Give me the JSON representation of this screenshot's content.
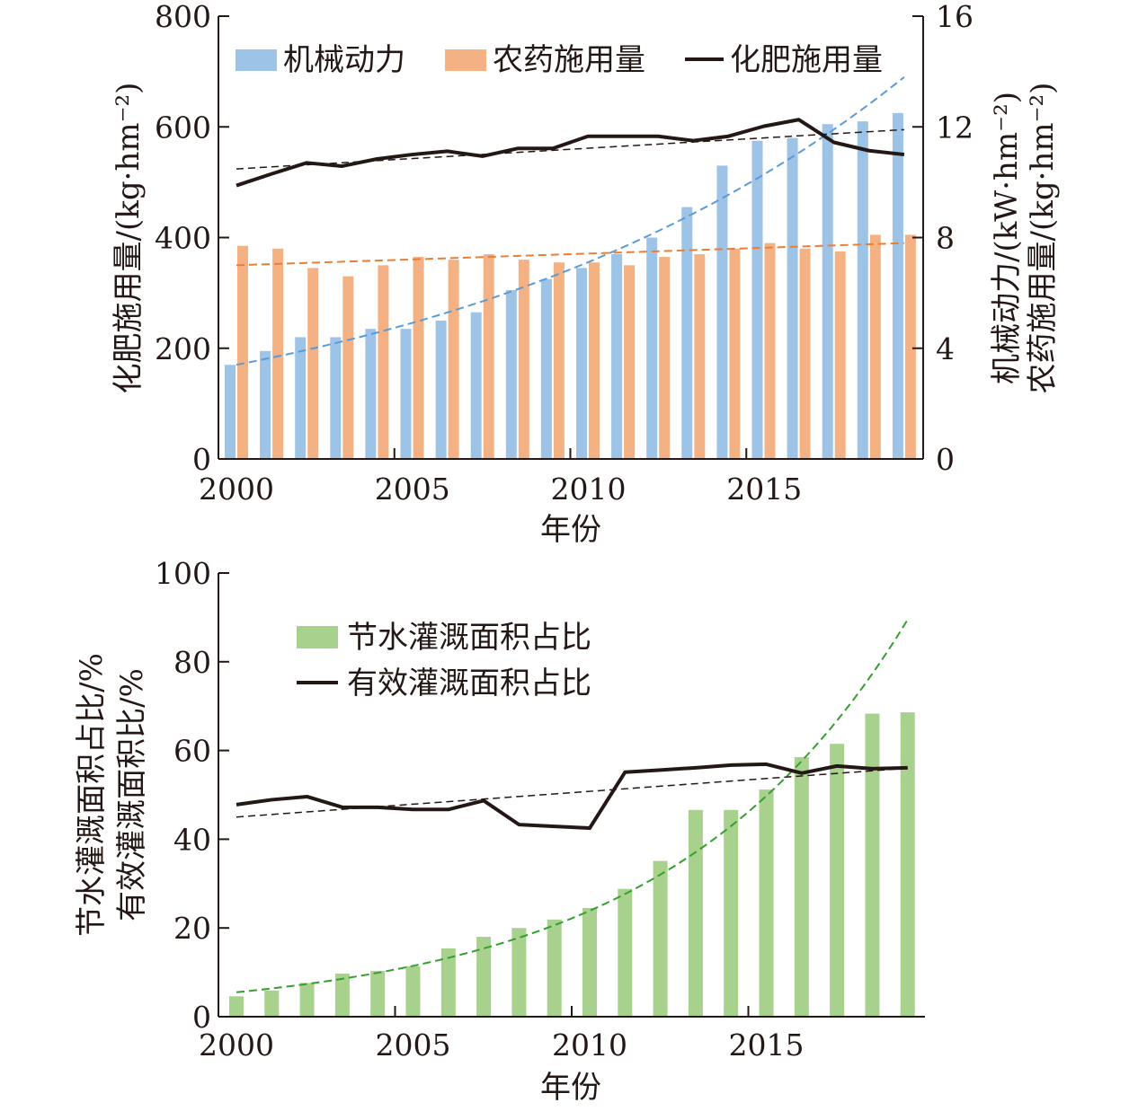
{
  "chart_data": [
    {
      "type": "bar",
      "x": [
        2000,
        2001,
        2002,
        2003,
        2004,
        2005,
        2006,
        2007,
        2008,
        2009,
        2010,
        2011,
        2012,
        2013,
        2014,
        2015,
        2016,
        2017,
        2018,
        2019
      ],
      "xlabel": "年份",
      "xticks": [
        "2000",
        "2005",
        "2010",
        "2015"
      ],
      "xlim": [
        2000,
        2019
      ],
      "ylabel": "化肥施用量/(kg·hm⁻²)",
      "ylim": [
        0,
        800
      ],
      "yticks": [
        "0",
        "200",
        "400",
        "600",
        "800"
      ],
      "y2label_line1": "机械动力/(kW·hm⁻²)",
      "y2label_line2": "农药施用量/(kg·hm⁻²)",
      "y2lim": [
        0,
        16
      ],
      "y2ticks": [
        "0",
        "4",
        "8",
        "12",
        "16"
      ],
      "legend_position": "top",
      "series": [
        {
          "name": "机械动力",
          "kind": "bar",
          "axis": "right",
          "color": "#9dc3e6",
          "values": [
            3.4,
            3.9,
            4.4,
            4.4,
            4.7,
            4.7,
            5.0,
            5.3,
            6.1,
            6.5,
            6.9,
            7.4,
            8.0,
            9.1,
            10.6,
            11.5,
            11.6,
            12.1,
            12.2,
            12.5
          ]
        },
        {
          "name": "农药施用量",
          "kind": "bar",
          "axis": "right",
          "color": "#f4b183",
          "values": [
            7.7,
            7.6,
            6.9,
            6.6,
            7.0,
            7.3,
            7.2,
            7.4,
            7.2,
            7.1,
            7.1,
            7.0,
            7.3,
            7.4,
            7.6,
            7.8,
            7.6,
            7.5,
            8.1,
            8.1
          ]
        },
        {
          "name": "化肥施用量",
          "kind": "line",
          "axis": "left",
          "color": "#231815",
          "values": [
            494,
            515,
            535,
            529,
            542,
            550,
            556,
            547,
            561,
            561,
            583,
            583,
            583,
            575,
            583,
            601,
            613,
            572,
            557,
            550
          ]
        }
      ],
      "trendlines": [
        {
          "of": "机械动力",
          "color": "#5b9bd5",
          "start": 3.4,
          "end": 13.8
        },
        {
          "of": "农药施用量",
          "color": "#ed7d31",
          "start": 7.0,
          "end": 7.8
        },
        {
          "of": "化肥施用量",
          "color": "#231815",
          "start": 524,
          "end": 595
        }
      ]
    },
    {
      "type": "bar",
      "x": [
        2000,
        2001,
        2002,
        2003,
        2004,
        2005,
        2006,
        2007,
        2008,
        2009,
        2010,
        2011,
        2012,
        2013,
        2014,
        2015,
        2016,
        2017,
        2018,
        2019
      ],
      "xlabel": "年份",
      "xticks": [
        "2000",
        "2005",
        "2010",
        "2015"
      ],
      "xlim": [
        2000,
        2019
      ],
      "ylabel_line1": "节水灌溉面积占比/%",
      "ylabel_line2": "有效灌溉面积比/%",
      "ylim": [
        0,
        100
      ],
      "yticks": [
        "0",
        "20",
        "40",
        "60",
        "80",
        "100"
      ],
      "legend_position": "upper-left",
      "series": [
        {
          "name": "节水灌溉面积占比",
          "kind": "bar",
          "color": "#a9d18e",
          "values": [
            4.6,
            5.9,
            7.6,
            9.7,
            10.3,
            11.4,
            15.4,
            18.0,
            20.0,
            21.9,
            24.5,
            28.8,
            35.1,
            46.6,
            46.6,
            51.2,
            58.5,
            61.5,
            68.3,
            68.6
          ]
        },
        {
          "name": "有效灌溉面积占比",
          "kind": "line",
          "color": "#231815",
          "values": [
            47.8,
            48.9,
            49.6,
            47.2,
            47.2,
            46.7,
            46.7,
            48.7,
            43.3,
            42.9,
            42.5,
            55.1,
            55.6,
            56.1,
            56.7,
            56.9,
            54.9,
            56.5,
            55.9,
            56.1
          ]
        }
      ],
      "trendlines": [
        {
          "of": "节水灌溉面积占比",
          "color": "#33a02c",
          "start": 5.5,
          "end": 89.5
        },
        {
          "of": "有效灌溉面积占比",
          "color": "#231815",
          "start": 45.0,
          "end": 56.0
        }
      ]
    }
  ]
}
